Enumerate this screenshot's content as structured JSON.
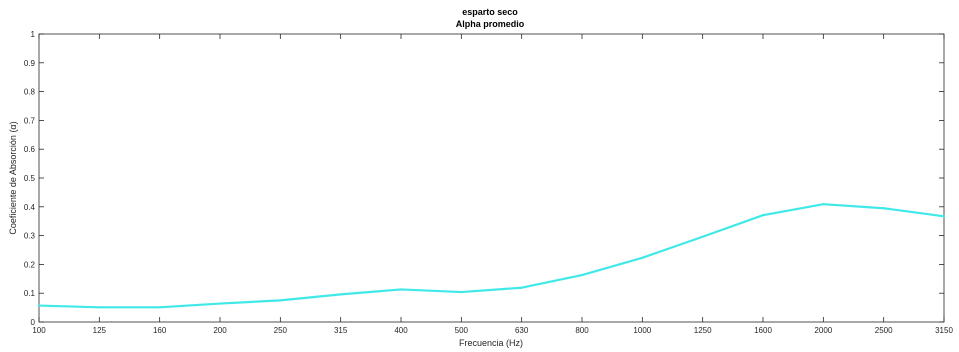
{
  "chart_data": {
    "type": "line",
    "title": "esparto seco",
    "subtitle": "Alpha promedio",
    "xlabel": "Frecuencia (Hz)",
    "ylabel": "Coeficiente de Absorción (α)",
    "categories": [
      "100",
      "125",
      "160",
      "200",
      "250",
      "315",
      "400",
      "500",
      "630",
      "800",
      "1000",
      "1250",
      "1600",
      "2000",
      "2500",
      "3150"
    ],
    "series": [
      {
        "values": [
          0.057,
          0.051,
          0.051,
          0.064,
          0.075,
          0.096,
          0.113,
          0.104,
          0.119,
          0.163,
          0.223,
          0.296,
          0.371,
          0.409,
          0.395,
          0.367
        ],
        "color": "#40E8E8"
      }
    ],
    "ylim": [
      0,
      1
    ],
    "yticks": [
      "0",
      "0.1",
      "0.2",
      "0.3",
      "0.4",
      "0.5",
      "0.6",
      "0.7",
      "0.8",
      "0.9",
      "1"
    ],
    "grid": false,
    "box": true
  }
}
